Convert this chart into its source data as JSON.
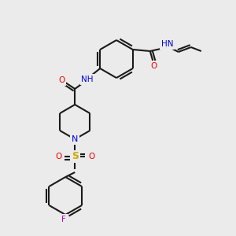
{
  "bg_color": "#ebebeb",
  "atom_colors": {
    "C": "#1a1a1a",
    "N": "#0000ee",
    "O": "#ee0000",
    "S": "#ccaa00",
    "F": "#cc00cc",
    "H": "#4a8888"
  },
  "bond_color": "#1a1a1a",
  "bond_width": 1.5,
  "figsize": [
    3.0,
    3.0
  ],
  "dpi": 100
}
